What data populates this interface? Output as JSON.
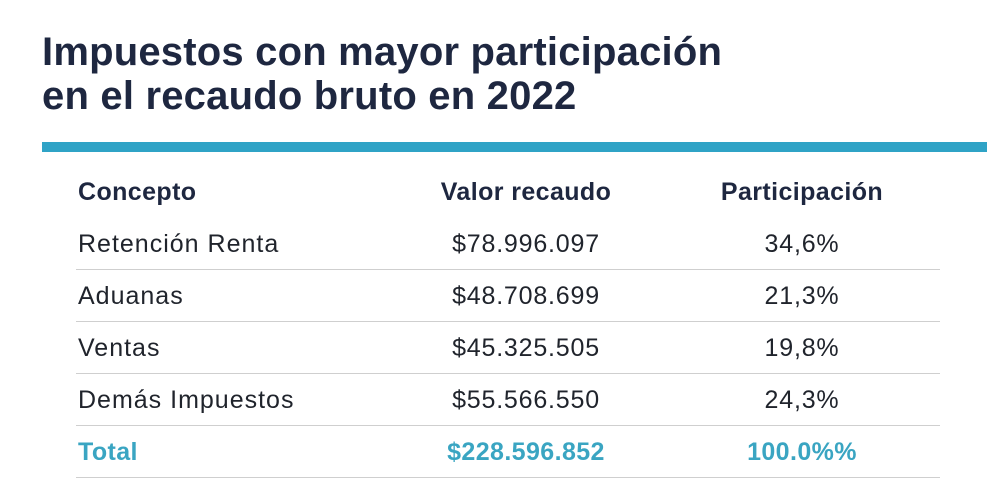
{
  "title": {
    "line1": "Impuestos con mayor participación",
    "line2": "en el recaudo bruto en 2022"
  },
  "colors": {
    "title": "#1e2740",
    "accent": "#2fa3c6",
    "total_text": "#3aa5c2",
    "divider": "#cfcfcf"
  },
  "table": {
    "headers": [
      "Concepto",
      "Valor recaudo",
      "Participación"
    ],
    "rows": [
      {
        "concepto": "Retención Renta",
        "valor": "$78.996.097",
        "participacion": "34,6%"
      },
      {
        "concepto": "Aduanas",
        "valor": "$48.708.699",
        "participacion": "21,3%"
      },
      {
        "concepto": "Ventas",
        "valor": "$45.325.505",
        "participacion": "19,8%"
      },
      {
        "concepto": "Demás Impuestos",
        "valor": "$55.566.550",
        "participacion": "24,3%"
      }
    ],
    "total": {
      "concepto": "Total",
      "valor": "$228.596.852",
      "participacion": "100.0%%"
    }
  }
}
